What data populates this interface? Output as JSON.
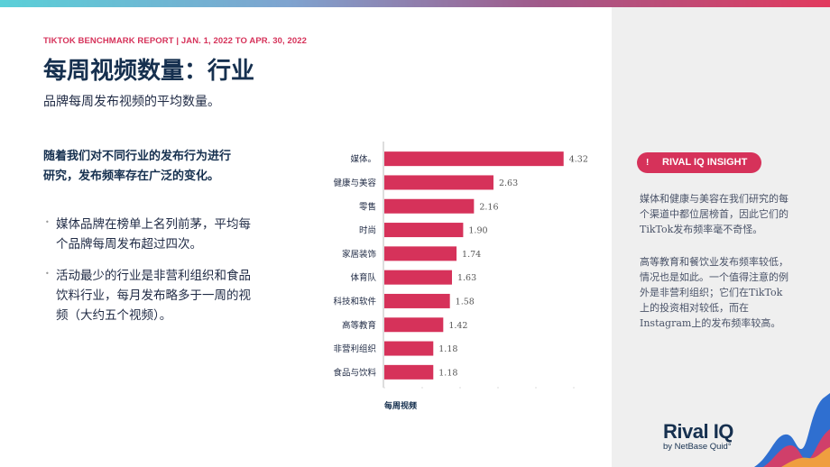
{
  "header": {
    "report_label": "TIKTOK BENCHMARK REPORT | JAN. 1, 2022 TO APR. 30, 2022",
    "title": "每周视频数量：行业",
    "subtitle": "品牌每周发布视频的平均数量。"
  },
  "left": {
    "lead": "随着我们对不同行业的发布行为进行研究，发布频率存在广泛的变化。",
    "bullets": [
      "媒体品牌在榜单上名列前茅，平均每个品牌每周发布超过四次。",
      "活动最少的行业是非营利组织和食品饮料行业，每月发布略多于一周的视频（大约五个视频）。"
    ]
  },
  "chart_data": {
    "type": "bar",
    "orientation": "horizontal",
    "categories": [
      "媒体。",
      "健康与美容",
      "零售",
      "时尚",
      "家居装饰",
      "体育队",
      "科技和软件",
      "高等教育",
      "非营利组织",
      "食品与饮料"
    ],
    "values": [
      4.32,
      2.63,
      2.16,
      1.9,
      1.74,
      1.63,
      1.58,
      1.42,
      1.18,
      1.18
    ],
    "value_labels": [
      "4.32",
      "2.63",
      "2.16",
      "1.90",
      "1.74",
      "1.63",
      "1.58",
      "1.42",
      "1.18",
      "1.18"
    ],
    "xlabel": "每周视频",
    "xlim": [
      0,
      5
    ],
    "bar_color": "#d6325a",
    "grid": false
  },
  "insight": {
    "pill_label": "RIVAL IQ INSIGHT",
    "paragraphs": [
      "媒体和健康与美容在我们研究的每个渠道中都位居榜首，因此它们的TikTok发布频率毫不奇怪。",
      "高等教育和餐饮业发布频率较低，情况也是如此。一个值得注意的例外是非营利组织；它们在TikTok上的投资相对较低，而在Instagram上的发布频率较高。"
    ],
    "accent_color": "#d6325a"
  },
  "logo": {
    "main": "Rival IQ",
    "sub": "by NetBase Quid°"
  }
}
